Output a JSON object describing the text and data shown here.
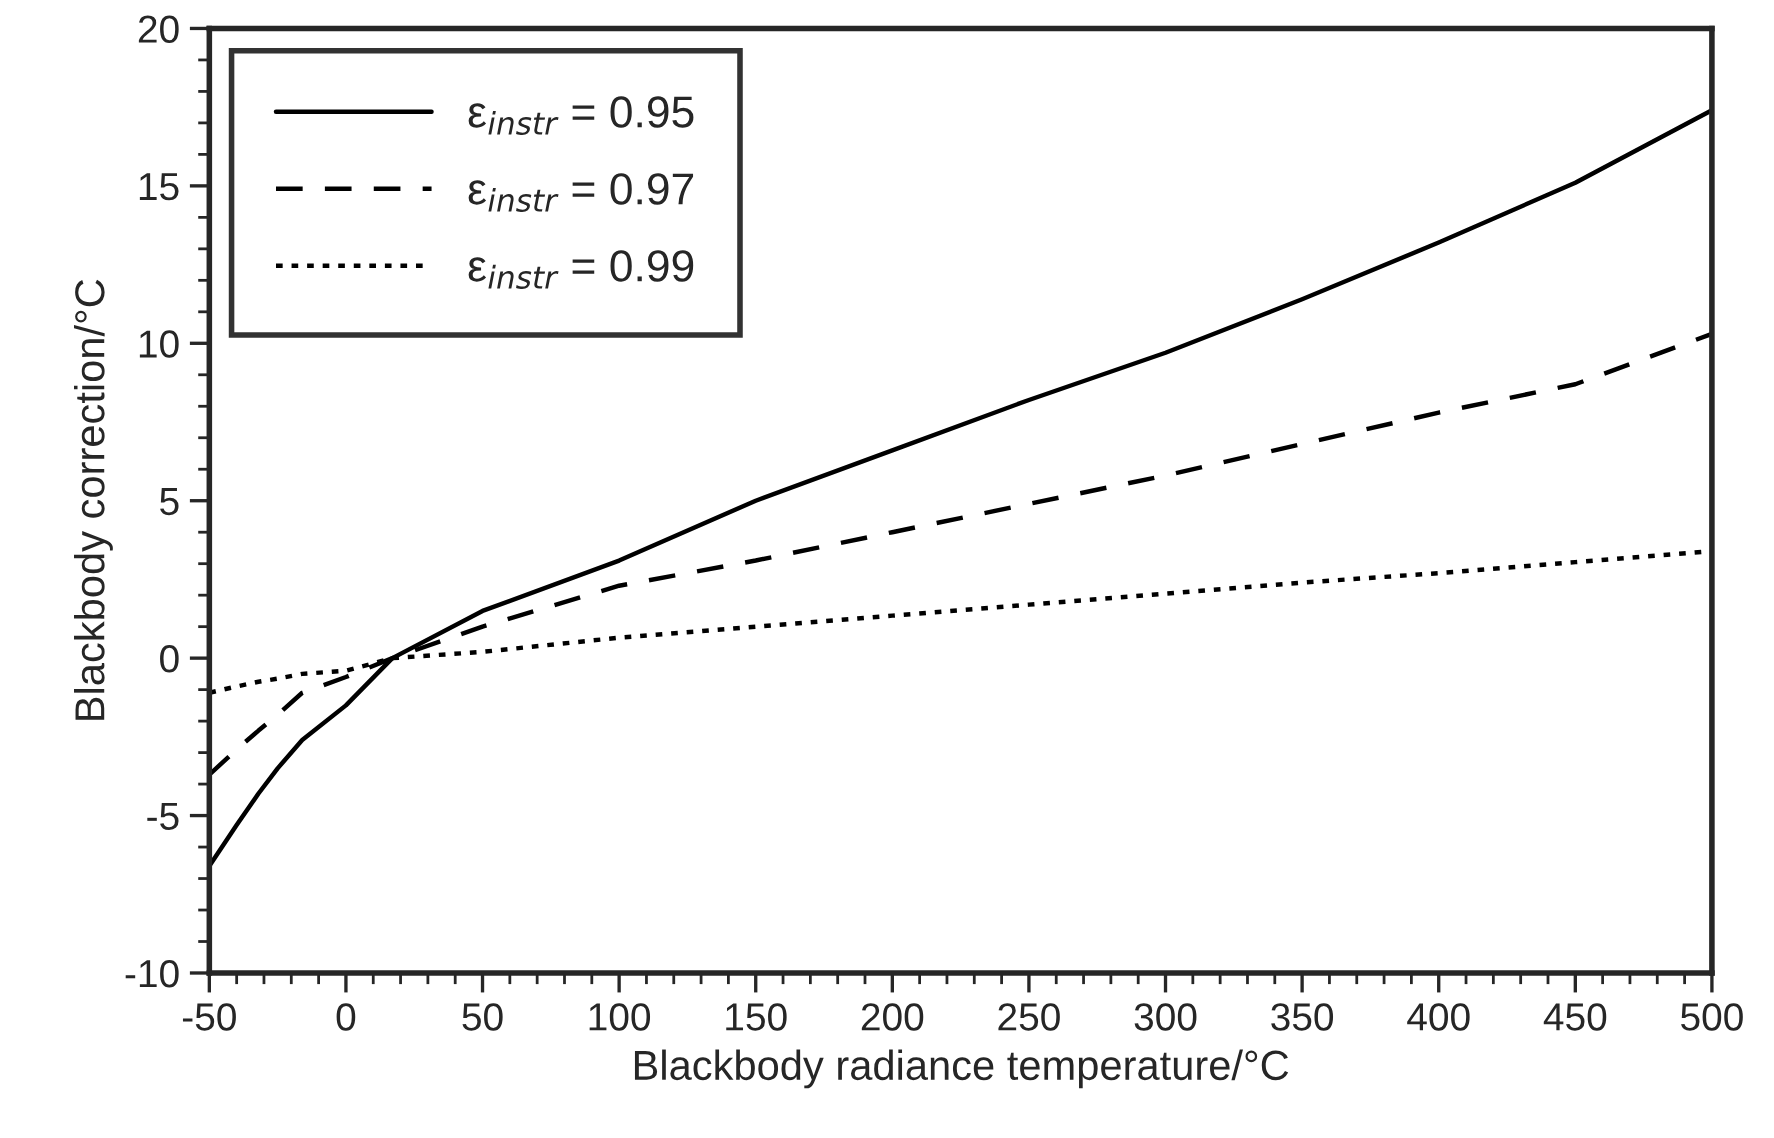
{
  "chart_data": {
    "type": "line",
    "xlabel": "Blackbody radiance temperature/°C",
    "ylabel": "Blackbody correction/°C",
    "x": [
      -50,
      -40,
      -32,
      -25,
      -16,
      0,
      17,
      50,
      100,
      150,
      200,
      250,
      300,
      350,
      400,
      450,
      500
    ],
    "series": [
      {
        "name": "ε$_{instr}$ = 0.95",
        "color": "#000000",
        "line_style": "solid",
        "values": [
          -6.6,
          -5.3,
          -4.3,
          -3.5,
          -2.6,
          -1.5,
          0.0,
          1.5,
          3.1,
          5.0,
          6.6,
          8.2,
          9.7,
          11.4,
          13.2,
          15.1,
          17.4
        ]
      },
      {
        "name": "ε$_{instr}$ = 0.97",
        "color": "#000000",
        "line_style": "dashed",
        "values": [
          -3.7,
          -2.9,
          -2.3,
          -1.8,
          -1.1,
          -0.6,
          0.0,
          1.0,
          2.3,
          3.1,
          4.0,
          4.9,
          5.8,
          6.8,
          7.8,
          8.7,
          10.3
        ]
      },
      {
        "name": "ε$_{instr}$ = 0.99",
        "color": "#000000",
        "line_style": "dotted",
        "values": [
          -1.1,
          -0.9,
          -0.75,
          -0.65,
          -0.5,
          -0.4,
          0.0,
          0.2,
          0.65,
          1.0,
          1.35,
          1.7,
          2.05,
          2.4,
          2.7,
          3.05,
          3.4
        ]
      }
    ],
    "xlim": [
      -50,
      500
    ],
    "xticks": [
      -50,
      0,
      50,
      100,
      150,
      200,
      250,
      300,
      350,
      400,
      450,
      500
    ],
    "ylim": [
      -10,
      20
    ],
    "yticks": [
      -10,
      -5,
      0,
      5,
      10,
      15,
      20
    ],
    "grid": false,
    "legend": "top left"
  }
}
